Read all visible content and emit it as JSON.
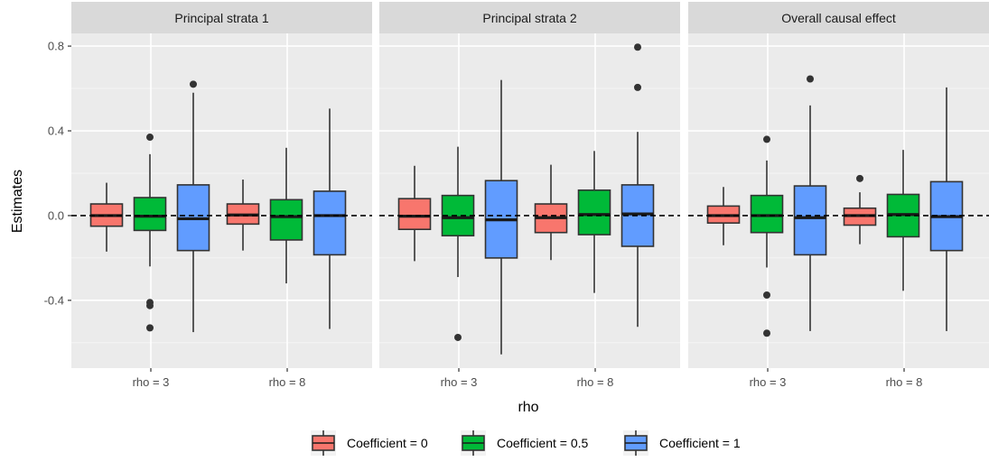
{
  "chart_data": {
    "type": "boxplot",
    "ylabel": "Estimates",
    "xlabel": "rho",
    "ylim": [
      -0.72,
      0.86
    ],
    "yticks": [
      {
        "value": -0.4,
        "label": "-0.4"
      },
      {
        "value": 0.0,
        "label": "0.0"
      },
      {
        "value": 0.4,
        "label": "0.4"
      },
      {
        "value": 0.8,
        "label": "0.8"
      }
    ],
    "categories": [
      "rho = 3",
      "rho = 8"
    ],
    "reference_line": {
      "y": 0,
      "style": "dashed"
    },
    "legend": {
      "position": "bottom",
      "entries": [
        {
          "label": "Coefficient = 0",
          "color": "#F8766D"
        },
        {
          "label": "Coefficient = 0.5",
          "color": "#00BA38"
        },
        {
          "label": "Coefficient = 1",
          "color": "#619CFF"
        }
      ]
    },
    "panels": [
      {
        "title": "Principal strata 1",
        "groups": [
          {
            "category": "rho = 3",
            "boxes": [
              {
                "series": 0,
                "q1": -0.05,
                "median": 0.0,
                "q3": 0.055,
                "whisker_low": -0.17,
                "whisker_high": 0.155,
                "outliers": []
              },
              {
                "series": 1,
                "q1": -0.07,
                "median": -0.003,
                "q3": 0.085,
                "whisker_low": -0.24,
                "whisker_high": 0.29,
                "outliers": [
                  0.37,
                  -0.41,
                  -0.425,
                  -0.53
                ]
              },
              {
                "series": 2,
                "q1": -0.165,
                "median": -0.015,
                "q3": 0.145,
                "whisker_low": -0.55,
                "whisker_high": 0.58,
                "outliers": [
                  0.62
                ]
              }
            ]
          },
          {
            "category": "rho = 8",
            "boxes": [
              {
                "series": 0,
                "q1": -0.04,
                "median": 0.003,
                "q3": 0.055,
                "whisker_low": -0.165,
                "whisker_high": 0.17,
                "outliers": []
              },
              {
                "series": 1,
                "q1": -0.115,
                "median": -0.005,
                "q3": 0.075,
                "whisker_low": -0.32,
                "whisker_high": 0.32,
                "outliers": []
              },
              {
                "series": 2,
                "q1": -0.185,
                "median": 0.0,
                "q3": 0.115,
                "whisker_low": -0.535,
                "whisker_high": 0.505,
                "outliers": []
              }
            ]
          }
        ]
      },
      {
        "title": "Principal strata 2",
        "groups": [
          {
            "category": "rho = 3",
            "boxes": [
              {
                "series": 0,
                "q1": -0.065,
                "median": -0.003,
                "q3": 0.08,
                "whisker_low": -0.215,
                "whisker_high": 0.235,
                "outliers": []
              },
              {
                "series": 1,
                "q1": -0.095,
                "median": -0.01,
                "q3": 0.095,
                "whisker_low": -0.29,
                "whisker_high": 0.325,
                "outliers": [
                  -0.575
                ]
              },
              {
                "series": 2,
                "q1": -0.2,
                "median": -0.02,
                "q3": 0.165,
                "whisker_low": -0.655,
                "whisker_high": 0.64,
                "outliers": []
              }
            ]
          },
          {
            "category": "rho = 8",
            "boxes": [
              {
                "series": 0,
                "q1": -0.08,
                "median": -0.01,
                "q3": 0.055,
                "whisker_low": -0.21,
                "whisker_high": 0.24,
                "outliers": []
              },
              {
                "series": 1,
                "q1": -0.09,
                "median": 0.005,
                "q3": 0.12,
                "whisker_low": -0.365,
                "whisker_high": 0.305,
                "outliers": []
              },
              {
                "series": 2,
                "q1": -0.145,
                "median": 0.008,
                "q3": 0.145,
                "whisker_low": -0.525,
                "whisker_high": 0.395,
                "outliers": [
                  0.605,
                  0.795
                ]
              }
            ]
          }
        ]
      },
      {
        "title": "Overall causal effect",
        "groups": [
          {
            "category": "rho = 3",
            "boxes": [
              {
                "series": 0,
                "q1": -0.035,
                "median": 0.0,
                "q3": 0.045,
                "whisker_low": -0.14,
                "whisker_high": 0.135,
                "outliers": []
              },
              {
                "series": 1,
                "q1": -0.08,
                "median": 0.0,
                "q3": 0.095,
                "whisker_low": -0.245,
                "whisker_high": 0.26,
                "outliers": [
                  0.36,
                  -0.375,
                  -0.555
                ]
              },
              {
                "series": 2,
                "q1": -0.185,
                "median": -0.01,
                "q3": 0.14,
                "whisker_low": -0.545,
                "whisker_high": 0.52,
                "outliers": [
                  0.645
                ]
              }
            ]
          },
          {
            "category": "rho = 8",
            "boxes": [
              {
                "series": 0,
                "q1": -0.045,
                "median": 0.0,
                "q3": 0.035,
                "whisker_low": -0.135,
                "whisker_high": 0.11,
                "outliers": [
                  0.175
                ]
              },
              {
                "series": 1,
                "q1": -0.1,
                "median": 0.005,
                "q3": 0.1,
                "whisker_low": -0.355,
                "whisker_high": 0.31,
                "outliers": []
              },
              {
                "series": 2,
                "q1": -0.165,
                "median": -0.005,
                "q3": 0.16,
                "whisker_low": -0.545,
                "whisker_high": 0.605,
                "outliers": []
              }
            ]
          }
        ]
      }
    ]
  }
}
